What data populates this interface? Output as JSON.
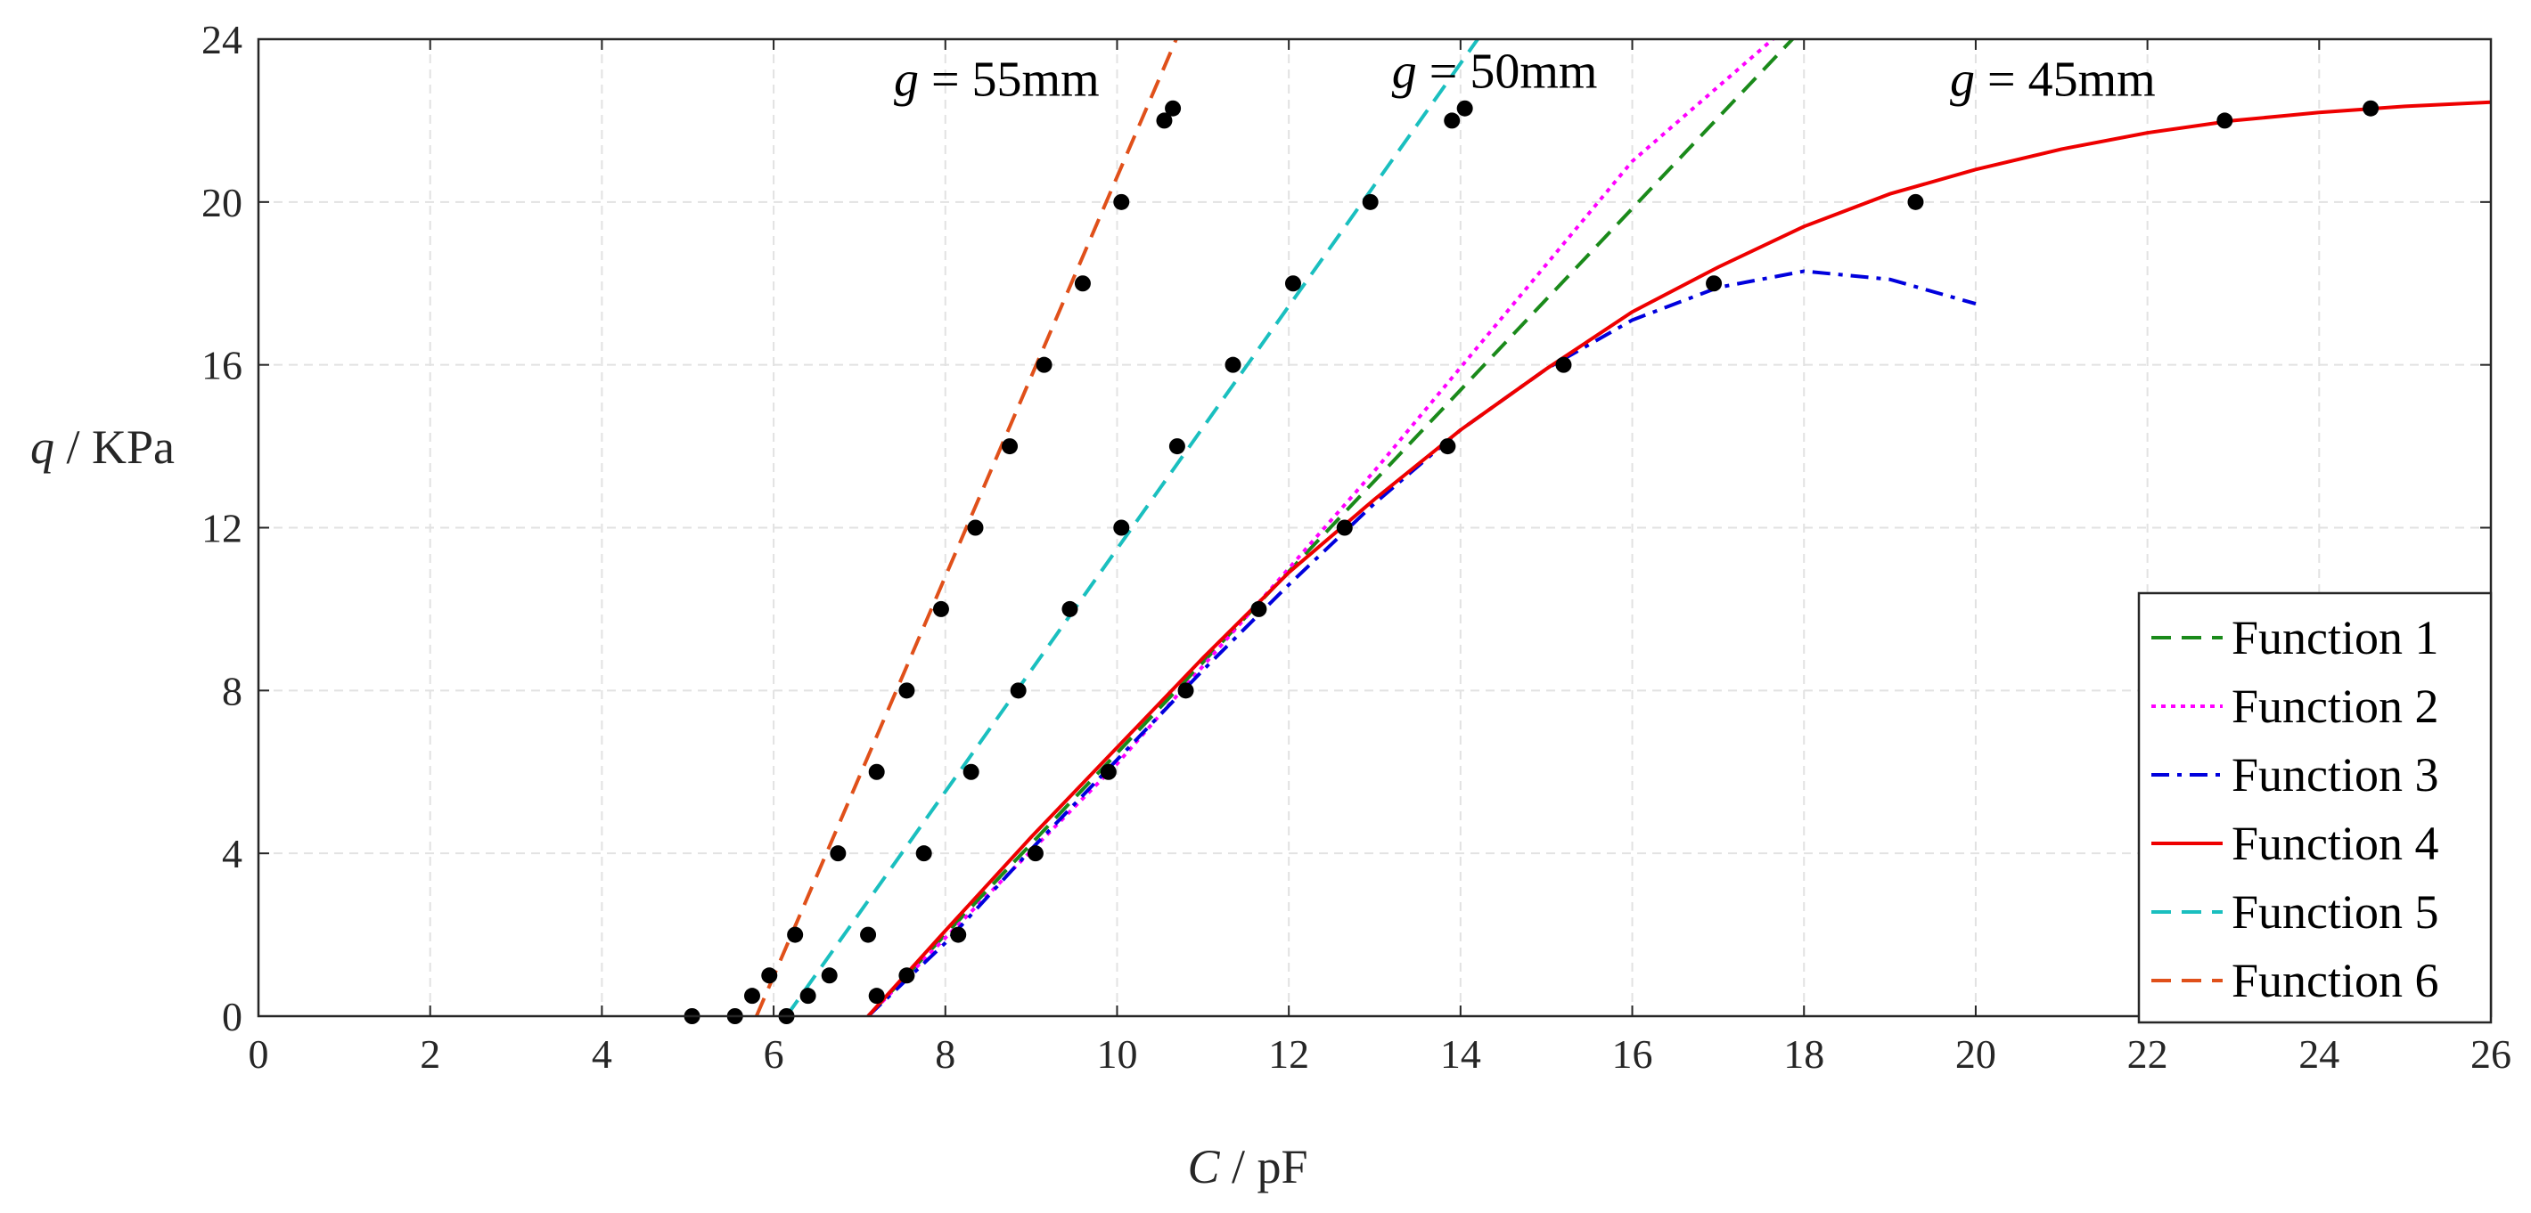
{
  "chart_data": {
    "type": "scatter",
    "title": "",
    "xlabel": {
      "var": "C",
      "unit": "pF"
    },
    "ylabel": {
      "var": "q",
      "unit": "KPa"
    },
    "xlim": [
      0,
      26
    ],
    "ylim": [
      0,
      24
    ],
    "xticks": [
      0,
      2,
      4,
      6,
      8,
      10,
      12,
      14,
      16,
      18,
      20,
      22,
      24,
      26
    ],
    "yticks": [
      0,
      4,
      8,
      12,
      16,
      20,
      24
    ],
    "grid": true,
    "legend_position": "bottom-right",
    "annotations": [
      {
        "var": "g",
        "value": "55mm",
        "x": 7.4,
        "y": 23.0
      },
      {
        "var": "g",
        "value": "50mm",
        "x": 13.2,
        "y": 23.2
      },
      {
        "var": "g",
        "value": "45mm",
        "x": 19.7,
        "y": 23.0
      }
    ],
    "scatter_points": [
      {
        "group": "g = 55mm",
        "x": [
          5.05,
          5.55,
          5.75,
          5.95,
          6.25,
          6.75,
          7.2,
          7.55,
          7.95,
          8.35,
          8.75,
          9.15,
          9.6,
          10.05,
          10.55,
          10.65
        ],
        "y": [
          0,
          0,
          0.5,
          1,
          2,
          4,
          6,
          8,
          10,
          12,
          14,
          16,
          18,
          20,
          22,
          22.3
        ]
      },
      {
        "group": "g = 50mm",
        "x": [
          6.15,
          6.4,
          6.65,
          7.1,
          7.75,
          8.3,
          8.85,
          9.45,
          10.05,
          10.7,
          11.35,
          12.05,
          12.95,
          13.9,
          14.05
        ],
        "y": [
          0,
          0.5,
          1,
          2,
          4,
          6,
          8,
          10,
          12,
          14,
          16,
          18,
          20,
          22,
          22.3
        ]
      },
      {
        "group": "g = 45mm",
        "x": [
          7.2,
          7.55,
          8.15,
          9.05,
          9.9,
          10.8,
          11.65,
          12.65,
          13.85,
          15.2,
          16.95,
          19.3,
          22.9,
          24.6
        ],
        "y": [
          0.5,
          1,
          2,
          4,
          6,
          8,
          10,
          12,
          14,
          16,
          18,
          20,
          22,
          22.3
        ]
      }
    ],
    "series": [
      {
        "name": "Function 1",
        "color": "#1a8a1a",
        "style": "dashed",
        "x": [
          7.1,
          18.0
        ],
        "y": [
          0,
          24.3
        ]
      },
      {
        "name": "Function 2",
        "color": "#ff00ff",
        "style": "dotted",
        "x": [
          7.1,
          10.0,
          13.0,
          16.0,
          17.8
        ],
        "y": [
          0,
          6.2,
          13.4,
          21.0,
          24.3
        ]
      },
      {
        "name": "Function 3",
        "color": "#0000dd",
        "style": "dashdot",
        "x": [
          7.1,
          8.0,
          9.0,
          10.0,
          11.0,
          12.0,
          13.0,
          14.0,
          15.0,
          16.0,
          17.0,
          18.0,
          19.0,
          20.0
        ],
        "y": [
          0,
          1.8,
          4.1,
          6.3,
          8.5,
          10.6,
          12.6,
          14.4,
          15.9,
          17.1,
          17.9,
          18.3,
          18.1,
          17.5
        ]
      },
      {
        "name": "Function 4",
        "color": "#ee0000",
        "style": "solid",
        "x": [
          7.1,
          8.0,
          9.0,
          10.0,
          11.0,
          12.0,
          13.0,
          14.0,
          15.0,
          16.0,
          17.0,
          18.0,
          19.0,
          20.0,
          21.0,
          22.0,
          23.0,
          24.0,
          25.0,
          26.0
        ],
        "y": [
          0,
          2.1,
          4.4,
          6.6,
          8.8,
          10.9,
          12.7,
          14.4,
          15.9,
          17.3,
          18.4,
          19.4,
          20.2,
          20.8,
          21.3,
          21.7,
          22.0,
          22.2,
          22.35,
          22.45
        ]
      },
      {
        "name": "Function 5",
        "color": "#1abfbf",
        "style": "dashed",
        "x": [
          6.15,
          14.3
        ],
        "y": [
          0,
          24.3
        ]
      },
      {
        "name": "Function 6",
        "color": "#e0501a",
        "style": "dashed",
        "x": [
          5.8,
          10.75
        ],
        "y": [
          0,
          24.3
        ]
      }
    ]
  }
}
